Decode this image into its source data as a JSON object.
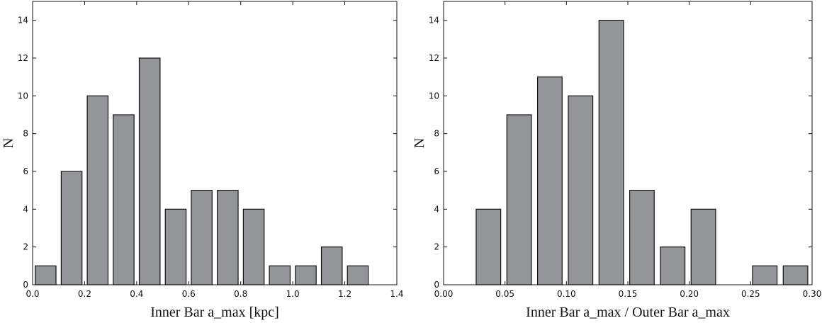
{
  "chart_data": [
    {
      "type": "histogram",
      "xlabel": "Inner Bar a_max [kpc]",
      "ylabel": "N",
      "bins": [
        0.0,
        0.1,
        0.2,
        0.3,
        0.4,
        0.5,
        0.6,
        0.7,
        0.8,
        0.9,
        1.0,
        1.1,
        1.2,
        1.3
      ],
      "values": [
        1,
        6,
        10,
        9,
        12,
        4,
        5,
        5,
        4,
        1,
        1,
        2,
        1
      ],
      "color": "#939598",
      "xlim": [
        0.0,
        1.4
      ],
      "xticks": [
        {
          "value": 0.0,
          "label": "0.0"
        },
        {
          "value": 0.2,
          "label": "0.2"
        },
        {
          "value": 0.4,
          "label": "0.4"
        },
        {
          "value": 0.6,
          "label": "0.6"
        },
        {
          "value": 0.8,
          "label": "0.8"
        },
        {
          "value": 1.0,
          "label": "1.0"
        },
        {
          "value": 1.2,
          "label": "1.2"
        },
        {
          "value": 1.4,
          "label": "1.4"
        }
      ],
      "ylim": [
        0,
        15
      ],
      "yticks": [
        0,
        2,
        4,
        6,
        8,
        10,
        12,
        14
      ]
    },
    {
      "type": "histogram",
      "xlabel": "Inner Bar a_max / Outer Bar a_max",
      "ylabel": "N",
      "bins": [
        0.024,
        0.049,
        0.074,
        0.099,
        0.124,
        0.149,
        0.174,
        0.199,
        0.224,
        0.249,
        0.274,
        0.299
      ],
      "values": [
        4,
        9,
        11,
        10,
        14,
        5,
        2,
        4,
        0,
        1,
        1
      ],
      "color": "#939598",
      "xlim": [
        0.0,
        0.3
      ],
      "xticks": [
        {
          "value": 0.0,
          "label": "0.00"
        },
        {
          "value": 0.05,
          "label": "0.05"
        },
        {
          "value": 0.1,
          "label": "0.10"
        },
        {
          "value": 0.15,
          "label": "0.15"
        },
        {
          "value": 0.2,
          "label": "0.20"
        },
        {
          "value": 0.25,
          "label": "0.25"
        },
        {
          "value": 0.3,
          "label": "0.30"
        }
      ],
      "ylim": [
        0,
        15
      ],
      "yticks": [
        0,
        2,
        4,
        6,
        8,
        10,
        12,
        14
      ]
    }
  ]
}
